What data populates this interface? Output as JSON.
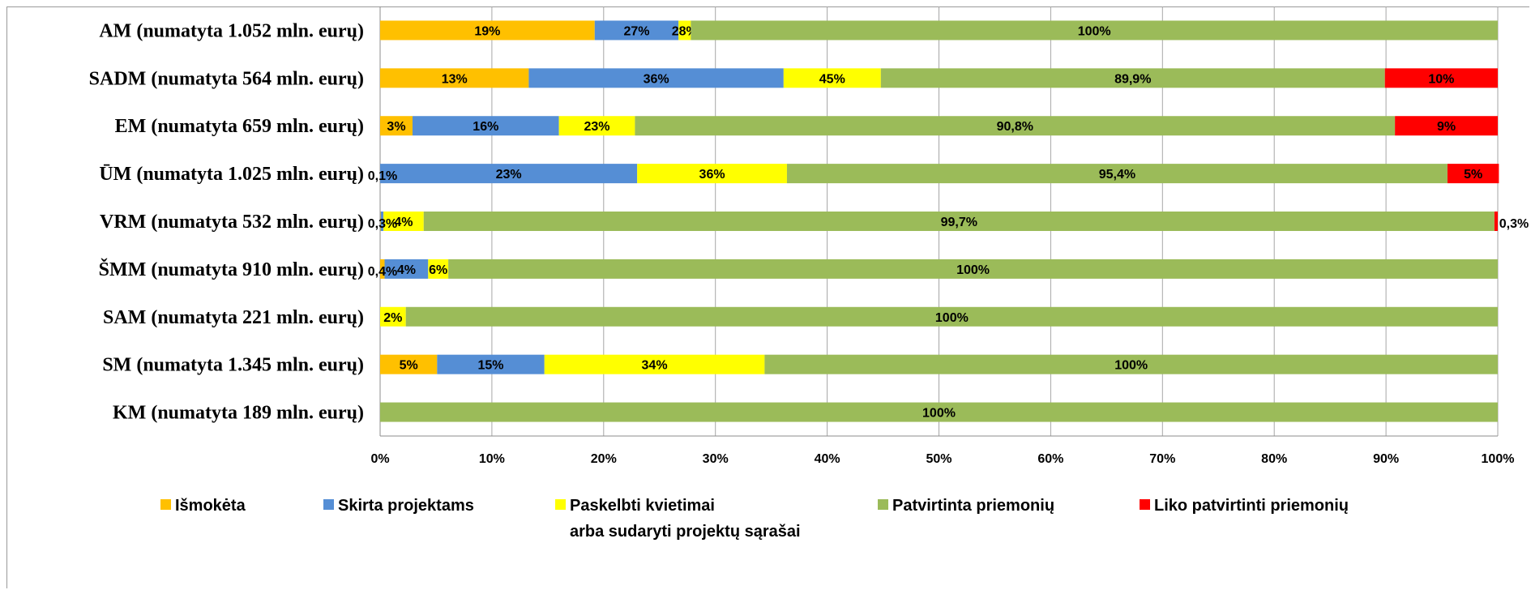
{
  "chart_data": {
    "type": "bar",
    "orientation": "horizontal-stacked",
    "xlim": [
      0,
      100
    ],
    "x_ticks": [
      "0%",
      "10%",
      "20%",
      "30%",
      "40%",
      "50%",
      "60%",
      "70%",
      "80%",
      "90%",
      "100%"
    ],
    "grid": "vertical",
    "legend_position": "bottom",
    "categories": [
      "AM (numatyta 1.052 mln. eurų)",
      "SADM (numatyta 564 mln. eurų)",
      "EM (numatyta 659 mln. eurų)",
      "ŪM (numatyta 1.025 mln. eurų)",
      "VRM (numatyta 532 mln. eurų)",
      "ŠMM (numatyta 910 mln. eurų)",
      "SAM (numatyta 221 mln. eurų)",
      "SM (numatyta 1.345 mln. eurų)",
      "KM (numatyta 189 mln. eurų)"
    ],
    "series": [
      {
        "name": "Išmokėta",
        "color": "#FFC000",
        "values": [
          19.2,
          13.3,
          2.9,
          0,
          0.04,
          0.4,
          0,
          5.1,
          0
        ],
        "labels": [
          "19%",
          "13%",
          "3%",
          "",
          "",
          "",
          "",
          "5%",
          ""
        ]
      },
      {
        "name": "Skirta projektams",
        "color": "#558ED5",
        "values": [
          7.5,
          22.8,
          13.1,
          23.0,
          0.26,
          3.9,
          0,
          9.6,
          0
        ],
        "labels": [
          "27%",
          "36%",
          "16%",
          "23%",
          "",
          "4%",
          "",
          "15%",
          ""
        ]
      },
      {
        "name": "Paskelbti kvietimai arba sudaryti projektų sąrašai",
        "color": "#FFFF00",
        "values": [
          1.1,
          8.7,
          6.8,
          13.4,
          3.6,
          1.8,
          2.3,
          19.7,
          0
        ],
        "labels": [
          "28%",
          "45%",
          "23%",
          "36%",
          "4%",
          "6%",
          "2%",
          "34%",
          ""
        ]
      },
      {
        "name": "Patvirtinta priemonių",
        "color": "#9BBB59",
        "values": [
          72.2,
          45.1,
          68.0,
          59.1,
          95.8,
          93.9,
          97.7,
          65.6,
          100
        ],
        "labels": [
          "100%",
          "89,9%",
          "90,8%",
          "95,4%",
          "99,7%",
          "100%",
          "100%",
          "100%",
          "100%"
        ]
      },
      {
        "name": "Liko patvirtinti priemonių",
        "color": "#FF0000",
        "values": [
          0,
          10.1,
          9.2,
          4.6,
          0.3,
          0,
          0,
          0,
          0
        ],
        "labels": [
          "",
          "10%",
          "9%",
          "5%",
          "",
          "",
          "",
          "",
          ""
        ]
      }
    ],
    "outside_labels": [
      {
        "category": 3,
        "side": "left",
        "text": "0,1%"
      },
      {
        "category": 4,
        "side": "left",
        "text": "0,3%"
      },
      {
        "category": 4,
        "side": "right",
        "text": "0,3%"
      },
      {
        "category": 5,
        "side": "left",
        "text": "0,4%"
      }
    ],
    "legend": [
      {
        "lines": [
          "Išmokėta"
        ],
        "color": "#FFC000"
      },
      {
        "lines": [
          "Skirta projektams"
        ],
        "color": "#558ED5"
      },
      {
        "lines": [
          "Paskelbti kvietimai",
          "arba sudaryti projektų sąrašai"
        ],
        "color": "#FFFF00"
      },
      {
        "lines": [
          "Patvirtinta priemonių"
        ],
        "color": "#9BBB59"
      },
      {
        "lines": [
          "Liko patvirtinti priemonių"
        ],
        "color": "#FF0000"
      }
    ]
  }
}
